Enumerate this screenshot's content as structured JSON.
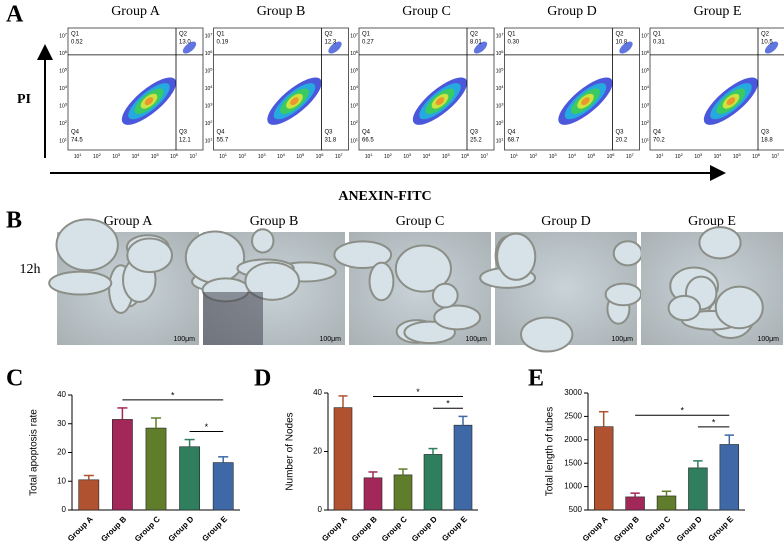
{
  "panel_labels": [
    "A",
    "B",
    "C",
    "D",
    "E"
  ],
  "flow": {
    "y_label": "PI",
    "x_label": "ANEXIN-FITC",
    "tick_base": "10",
    "tick_exponents": [
      1,
      2,
      3,
      4,
      5,
      6,
      7
    ],
    "quadrant_names": [
      "Q1",
      "Q2",
      "Q3",
      "Q4"
    ],
    "plots": [
      {
        "title": "Group A",
        "quadrants": [
          "0.52",
          "13.0",
          "12.1",
          "74.5"
        ]
      },
      {
        "title": "Group B",
        "quadrants": [
          "0.19",
          "12.3",
          "31.8",
          "55.7"
        ]
      },
      {
        "title": "Group C",
        "quadrants": [
          "0.27",
          "8.01",
          "25.2",
          "66.5"
        ]
      },
      {
        "title": "Group D",
        "quadrants": [
          "0.30",
          "10.8",
          "20.2",
          "68.7"
        ]
      },
      {
        "title": "Group E",
        "quadrants": [
          "0.31",
          "10.5",
          "18.8",
          "70.2"
        ]
      }
    ]
  },
  "images": {
    "row_label": "12h",
    "scale_bar": "100μm",
    "titles": [
      "Group A",
      "Group B",
      "Group C",
      "Group D",
      "Group E"
    ]
  },
  "chart_data": [
    {
      "type": "bar",
      "y_label": "Total apoptosis rate",
      "categories": [
        "Group A",
        "Group B",
        "Group C",
        "Group D",
        "Group E"
      ],
      "values": [
        10.5,
        31.5,
        28.5,
        22,
        16.5
      ],
      "errors": [
        1.5,
        4,
        3.5,
        2.5,
        2
      ],
      "colors": [
        "#b0522f",
        "#a3285a",
        "#5f7d2a",
        "#2f7f5f",
        "#3e69a6"
      ],
      "ylim": [
        0,
        40
      ],
      "yticks": [
        0,
        10,
        20,
        30,
        40
      ],
      "comparisons": [
        {
          "between": [
            "Group B",
            "Group E"
          ],
          "label": "*"
        },
        {
          "between": [
            "Group D",
            "Group E"
          ],
          "label": "*"
        }
      ]
    },
    {
      "type": "bar",
      "y_label": "Number of Nodes",
      "categories": [
        "Group A",
        "Group B",
        "Group C",
        "Group D",
        "Group E"
      ],
      "values": [
        35,
        11,
        12,
        19,
        29
      ],
      "errors": [
        4,
        2,
        2,
        2,
        3
      ],
      "colors": [
        "#b0522f",
        "#a3285a",
        "#5f7d2a",
        "#2f7f5f",
        "#3e69a6"
      ],
      "ylim": [
        0,
        40
      ],
      "yticks": [
        0,
        20,
        40
      ],
      "comparisons": [
        {
          "between": [
            "Group B",
            "Group E"
          ],
          "label": "*"
        },
        {
          "between": [
            "Group D",
            "Group E"
          ],
          "label": "*"
        }
      ]
    },
    {
      "type": "bar",
      "y_label": "Total length of tubes",
      "categories": [
        "Group A",
        "Group B",
        "Group C",
        "Group D",
        "Group E"
      ],
      "values": [
        2280,
        780,
        800,
        1400,
        1900
      ],
      "errors": [
        320,
        80,
        100,
        150,
        200
      ],
      "colors": [
        "#b0522f",
        "#a3285a",
        "#5f7d2a",
        "#2f7f5f",
        "#3e69a6"
      ],
      "ylim": [
        500,
        3000
      ],
      "yticks": [
        500,
        1000,
        1500,
        2000,
        2500,
        3000
      ],
      "comparisons": [
        {
          "between": [
            "Group B",
            "Group E"
          ],
          "label": "*"
        },
        {
          "between": [
            "Group D",
            "Group E"
          ],
          "label": "*"
        }
      ]
    }
  ]
}
